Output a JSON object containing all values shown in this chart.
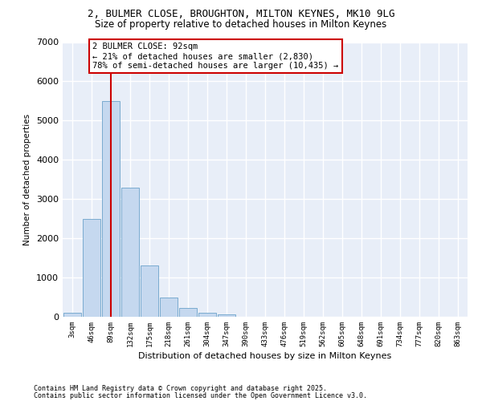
{
  "title_line1": "2, BULMER CLOSE, BROUGHTON, MILTON KEYNES, MK10 9LG",
  "title_line2": "Size of property relative to detached houses in Milton Keynes",
  "xlabel": "Distribution of detached houses by size in Milton Keynes",
  "ylabel": "Number of detached properties",
  "bar_labels": [
    "3sqm",
    "46sqm",
    "89sqm",
    "132sqm",
    "175sqm",
    "218sqm",
    "261sqm",
    "304sqm",
    "347sqm",
    "390sqm",
    "433sqm",
    "476sqm",
    "519sqm",
    "562sqm",
    "605sqm",
    "648sqm",
    "691sqm",
    "734sqm",
    "777sqm",
    "820sqm",
    "863sqm"
  ],
  "bar_values": [
    100,
    2500,
    5500,
    3300,
    1300,
    500,
    220,
    100,
    60,
    0,
    0,
    0,
    0,
    0,
    0,
    0,
    0,
    0,
    0,
    0,
    0
  ],
  "bar_color": "#c5d8ef",
  "bar_edge_color": "#7aabcf",
  "vline_index": 2,
  "vline_color": "#cc0000",
  "annotation_title": "2 BULMER CLOSE: 92sqm",
  "annotation_line2": "← 21% of detached houses are smaller (2,830)",
  "annotation_line3": "78% of semi-detached houses are larger (10,435) →",
  "ylim": [
    0,
    7000
  ],
  "yticks": [
    0,
    1000,
    2000,
    3000,
    4000,
    5000,
    6000,
    7000
  ],
  "footer_line1": "Contains HM Land Registry data © Crown copyright and database right 2025.",
  "footer_line2": "Contains public sector information licensed under the Open Government Licence v3.0.",
  "plot_bg_color": "#e8eef8",
  "grid_color": "#ffffff",
  "fig_bg_color": "#ffffff"
}
